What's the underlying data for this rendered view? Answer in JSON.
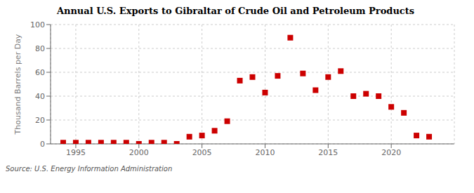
{
  "chart_data": {
    "type": "scatter",
    "title": "Annual U.S. Exports to Gibraltar of Crude Oil and Petroleum Products",
    "y_label": "Thousand Barrels per Day",
    "annotation": "Source: U.S. Energy Information Administration",
    "x": [
      1994,
      1995,
      1996,
      1997,
      1998,
      1999,
      2000,
      2001,
      2002,
      2003,
      2004,
      2005,
      2006,
      2007,
      2008,
      2009,
      2010,
      2011,
      2012,
      2013,
      2014,
      2015,
      2016,
      2017,
      2018,
      2019,
      2020,
      2021,
      2022,
      2023
    ],
    "values": [
      1,
      1,
      1,
      1,
      1,
      1,
      0,
      1,
      1,
      0,
      6,
      7,
      11,
      19,
      53,
      56,
      43,
      57,
      89,
      59,
      45,
      56,
      61,
      40,
      42,
      40,
      31,
      26,
      7,
      6
    ],
    "color": "#cc0000",
    "marker": "square",
    "xlim": [
      1993,
      2025
    ],
    "ylim": [
      0,
      100
    ],
    "xticks": [
      1995,
      2000,
      2005,
      2010,
      2015,
      2020
    ],
    "yticks": [
      0,
      20,
      40,
      60,
      80,
      100
    ],
    "grid": true
  }
}
